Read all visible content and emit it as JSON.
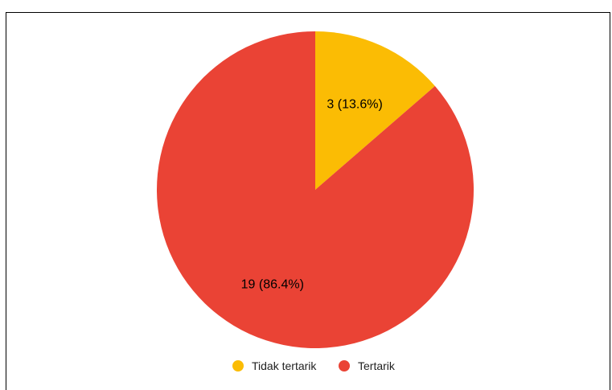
{
  "chart_data": {
    "type": "pie",
    "slices": [
      {
        "label": "Tidak tertarik",
        "value": 3,
        "percent": 13.6,
        "color": "#FBBC04",
        "display": "3 (13.6%)"
      },
      {
        "label": "Tertarik",
        "value": 19,
        "percent": 86.4,
        "color": "#EA4335",
        "display": "19 (86.4%)"
      }
    ],
    "start_angle_deg": 0,
    "direction": "clockwise",
    "legend": {
      "position": "bottom"
    }
  }
}
